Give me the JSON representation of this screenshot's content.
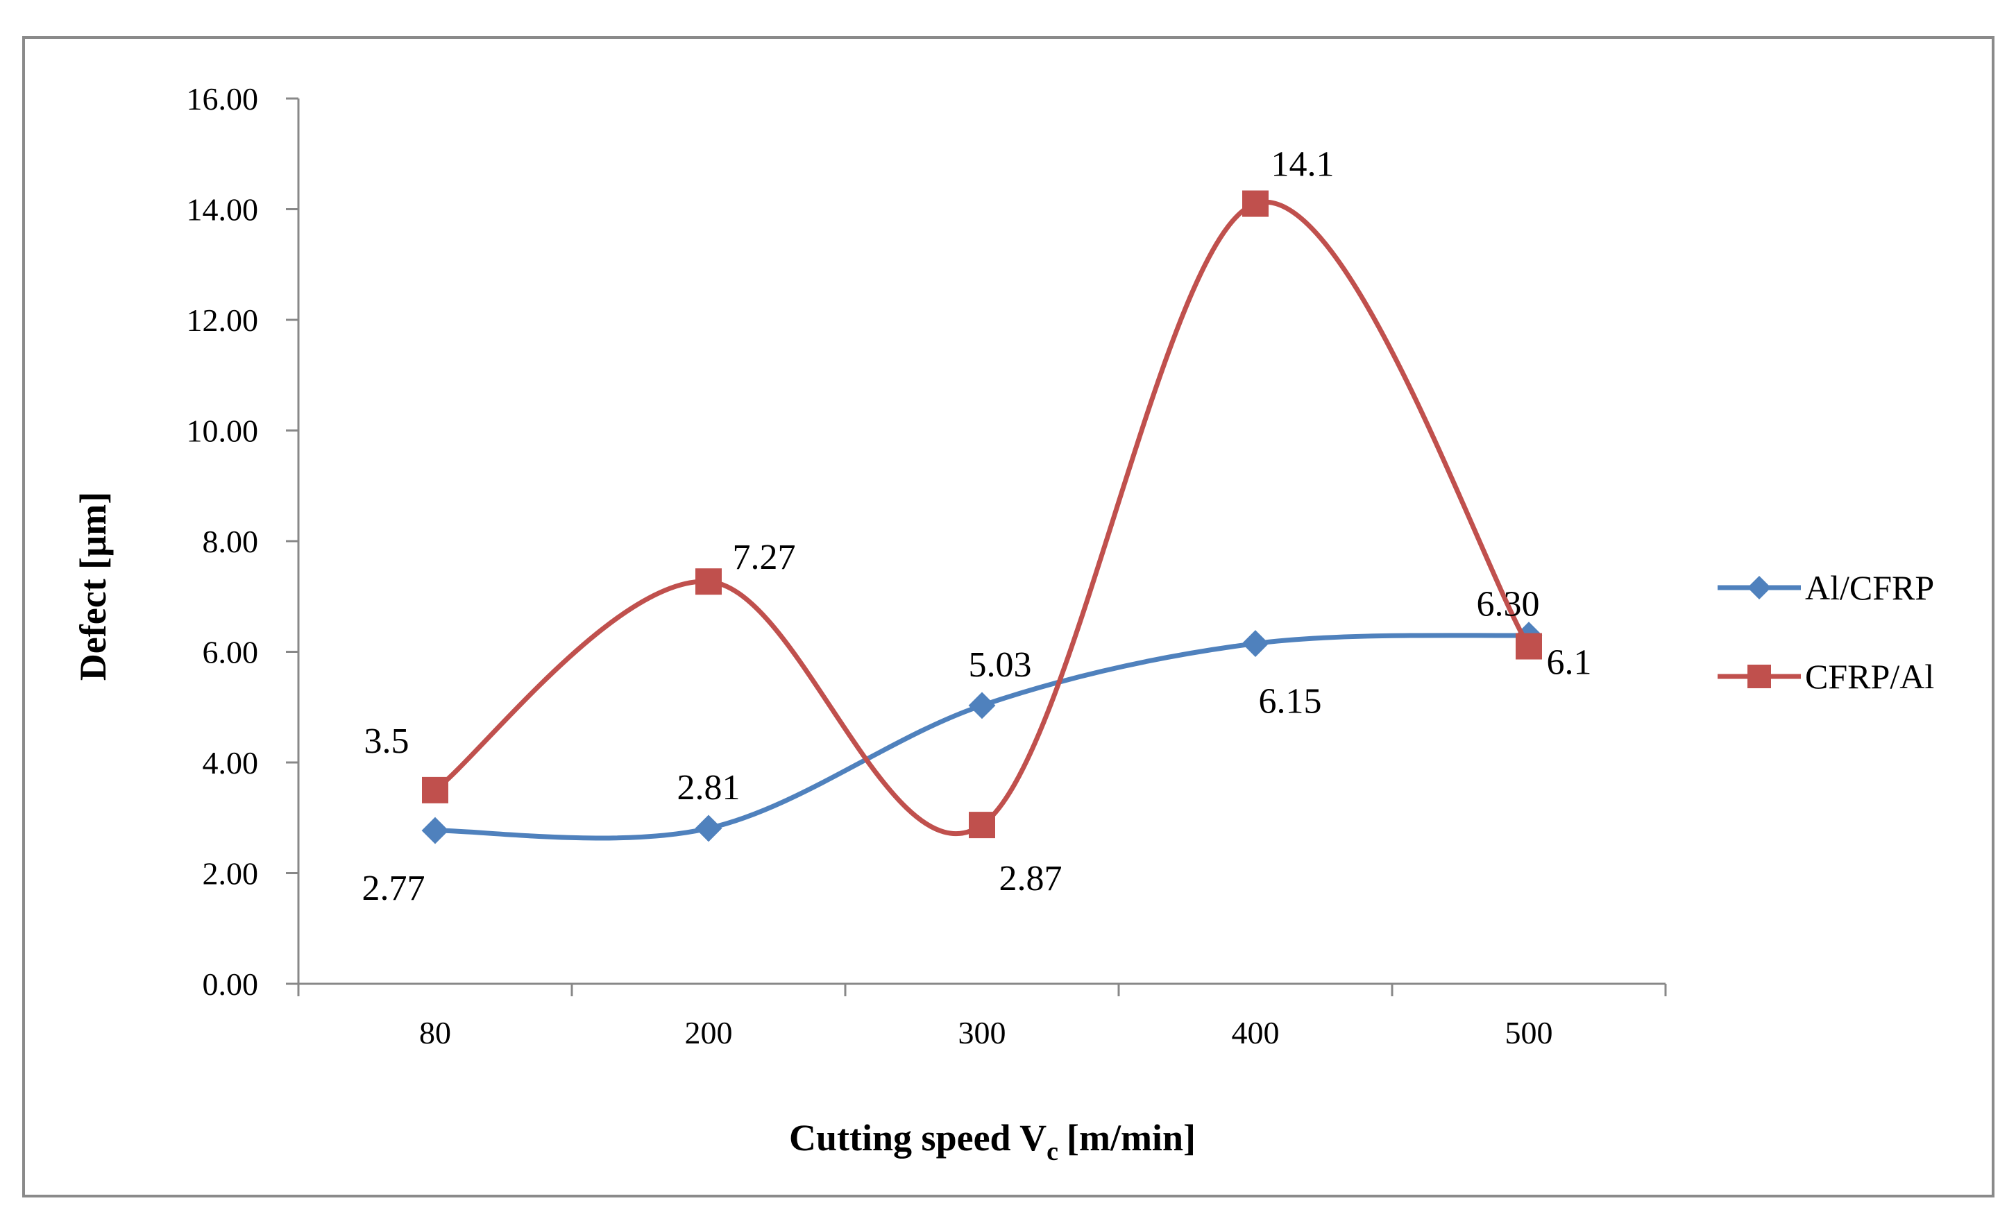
{
  "chart_data": {
    "type": "line",
    "title": "",
    "xlabel": "Cutting speed V",
    "xlabel_subscript": "c",
    "xlabel_suffix": "[m/min]",
    "ylabel": "Defect [µm]",
    "categories": [
      "80",
      "200",
      "300",
      "400",
      "500"
    ],
    "ylim": [
      0,
      16
    ],
    "yticks": [
      0,
      2,
      4,
      6,
      8,
      10,
      12,
      14,
      16
    ],
    "ytick_labels": [
      "0.00",
      "2.00",
      "4.00",
      "6.00",
      "8.00",
      "10.00",
      "12.00",
      "14.00",
      "16.00"
    ],
    "grid": false,
    "legend_position": "right",
    "smooth": true,
    "series": [
      {
        "name": "Al/CFRP",
        "color": "#4f81bd",
        "marker": "diamond",
        "values": [
          2.77,
          2.81,
          5.03,
          6.15,
          6.3
        ],
        "labels": [
          "2.77",
          "2.81",
          "5.03",
          "6.15",
          "6.30"
        ]
      },
      {
        "name": "CFRP/Al",
        "color": "#c0504d",
        "marker": "square",
        "values": [
          3.5,
          7.27,
          2.87,
          14.1,
          6.1
        ],
        "labels": [
          "3.5",
          "7.27",
          "2.87",
          "14.1",
          "6.1"
        ]
      }
    ]
  }
}
